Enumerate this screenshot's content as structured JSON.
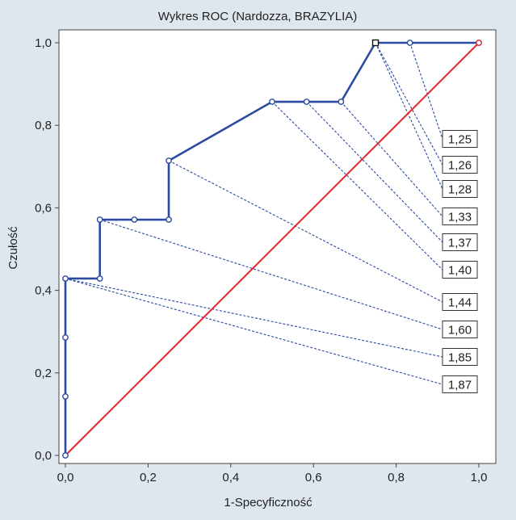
{
  "chart_data": {
    "type": "line",
    "title": "Wykres ROC (Nardozza, BRAZYLIA)",
    "xlabel": "1-Specyficzność",
    "ylabel": "Czułość",
    "xlim": [
      0,
      1
    ],
    "ylim": [
      0,
      1
    ],
    "x_ticks": [
      "0,0",
      "0,2",
      "0,4",
      "0,6",
      "0,8",
      "1,0"
    ],
    "y_ticks": [
      "0,0",
      "0,2",
      "0,4",
      "0,6",
      "0,8",
      "1,0"
    ],
    "grid": false,
    "colors": {
      "roc": "#2b4aa0",
      "reference": "#e0282e",
      "leader": "#2b4aa0"
    },
    "series": [
      {
        "role": "roc",
        "x": [
          0,
          0,
          0,
          0,
          0.0833,
          0.0833,
          0.1667,
          0.25,
          0.25,
          0.5,
          0.5833,
          0.6667,
          0.75,
          0.8333,
          1.0
        ],
        "y": [
          0,
          0.1429,
          0.2857,
          0.4286,
          0.4286,
          0.5714,
          0.5714,
          0.5714,
          0.7143,
          0.8571,
          0.8571,
          0.8571,
          1.0,
          1.0,
          1.0
        ]
      },
      {
        "role": "reference",
        "x": [
          0,
          1
        ],
        "y": [
          0,
          1
        ]
      }
    ],
    "cutoffs": [
      {
        "label": "1,25",
        "x": 0.8333,
        "y": 1.0
      },
      {
        "label": "1,26",
        "x": 0.75,
        "y": 1.0
      },
      {
        "label": "1,28",
        "x": 0.75,
        "y": 1.0
      },
      {
        "label": "1,33",
        "x": 0.6667,
        "y": 0.8571
      },
      {
        "label": "1,37",
        "x": 0.5833,
        "y": 0.8571
      },
      {
        "label": "1,40",
        "x": 0.5,
        "y": 0.8571
      },
      {
        "label": "1,44",
        "x": 0.25,
        "y": 0.7143
      },
      {
        "label": "1,60",
        "x": 0.0833,
        "y": 0.5714
      },
      {
        "label": "1,85",
        "x": 0.0,
        "y": 0.4286
      },
      {
        "label": "1,87",
        "x": 0.0,
        "y": 0.4286
      }
    ]
  }
}
